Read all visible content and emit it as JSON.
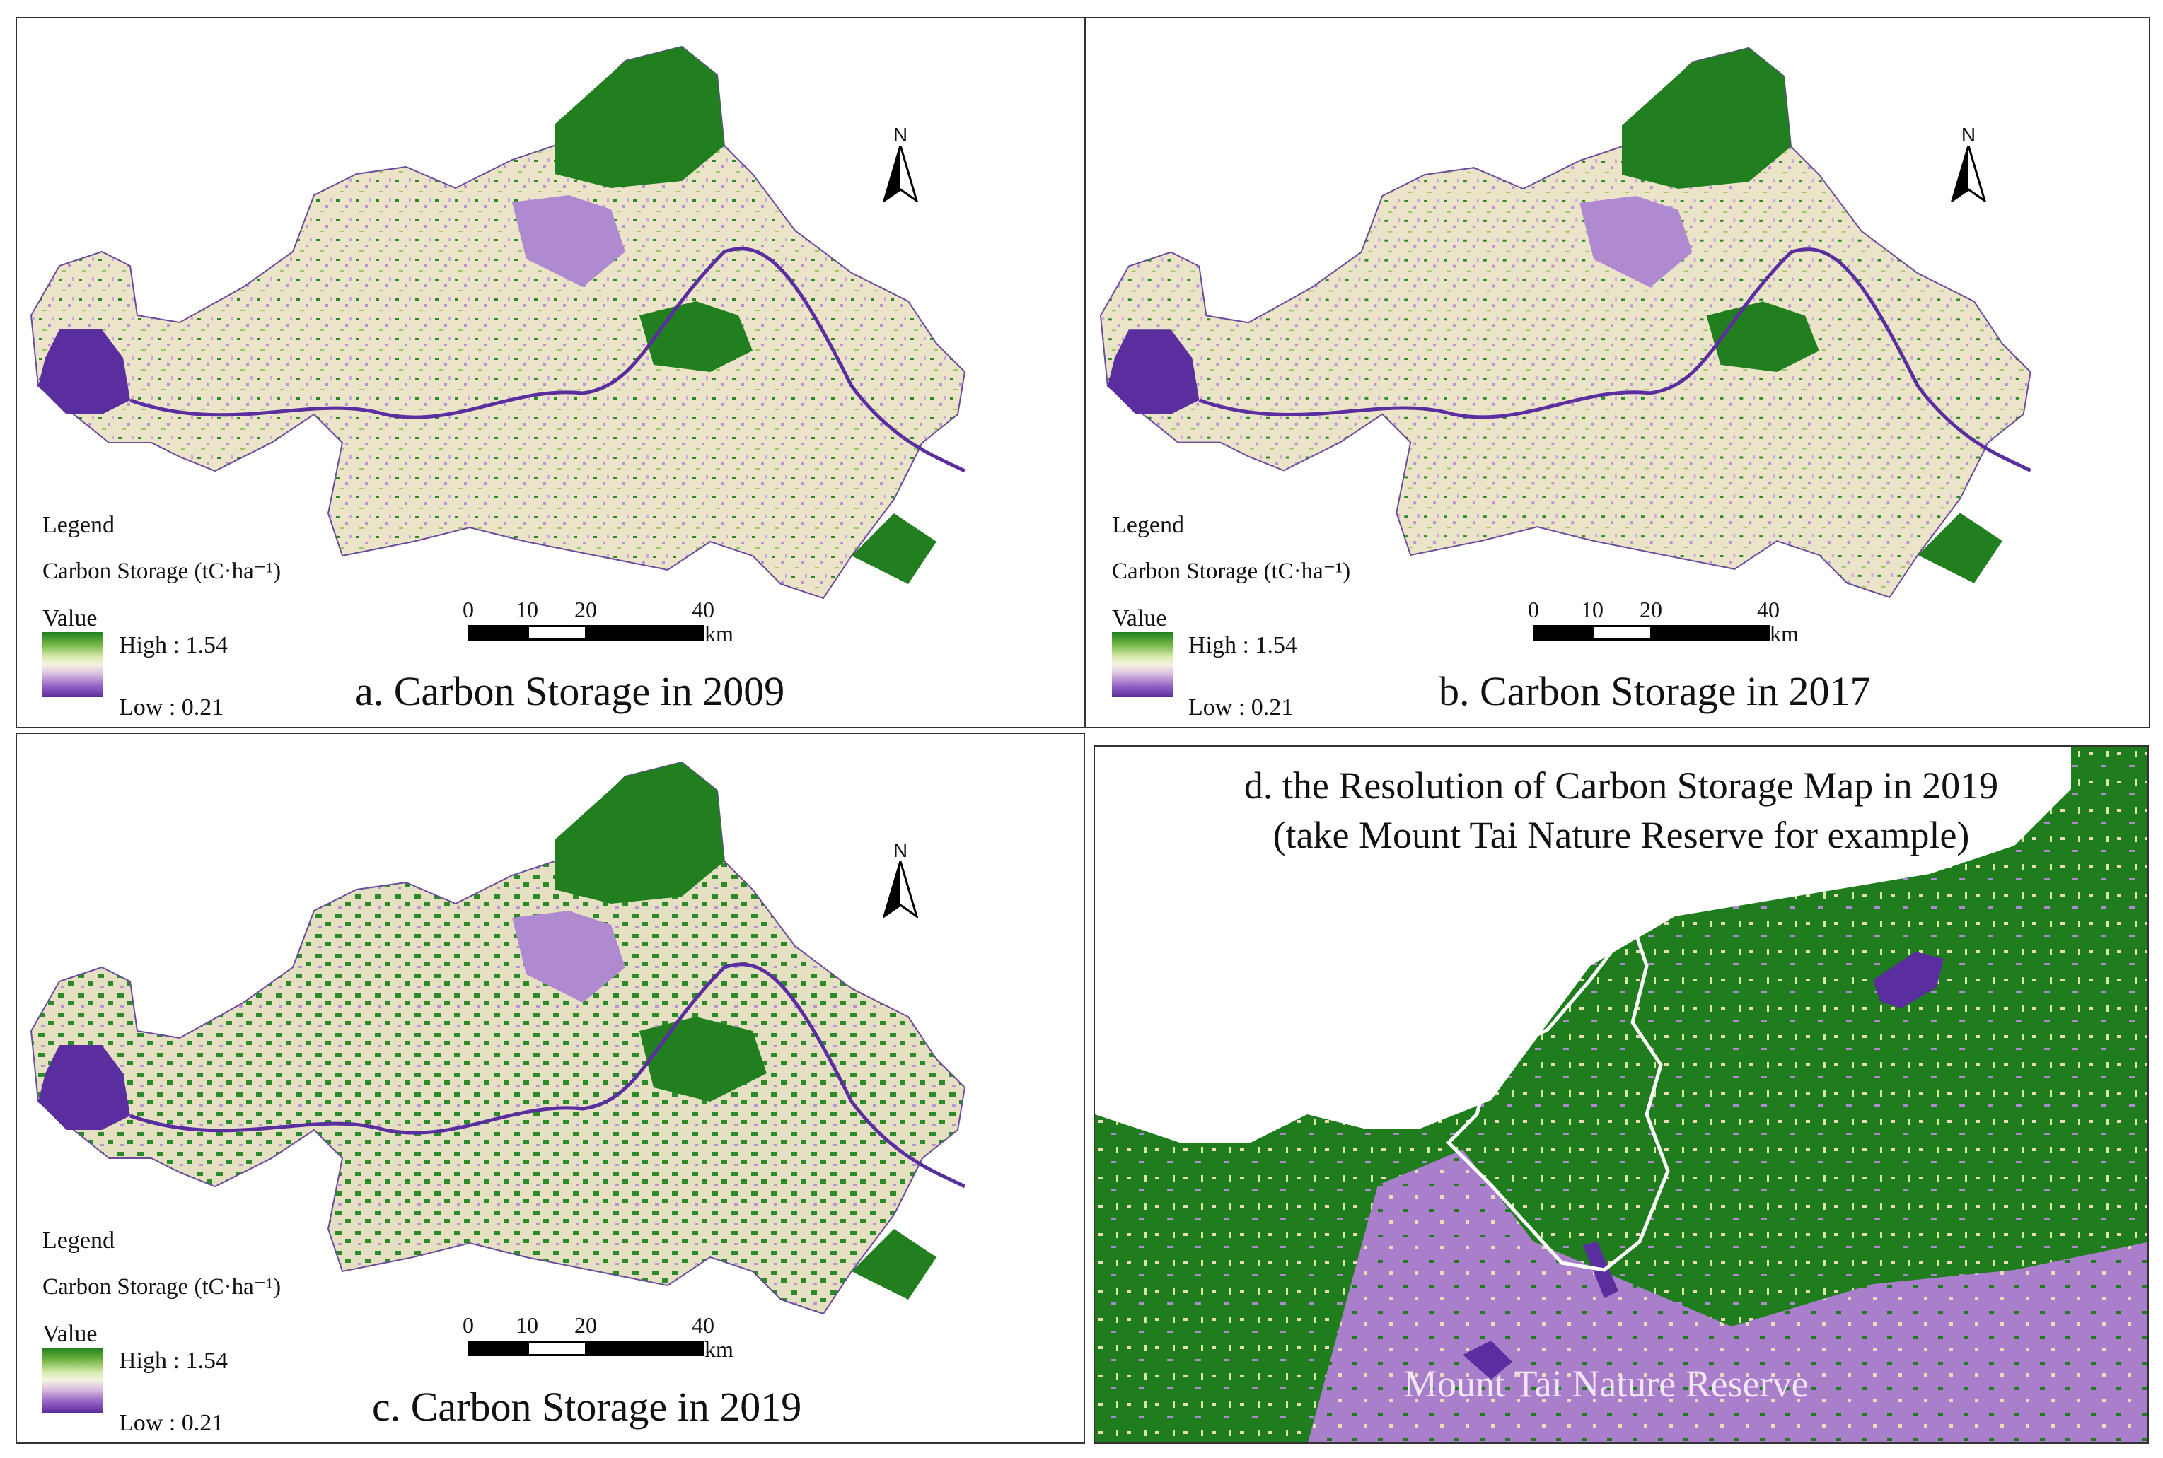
{
  "panels": [
    {
      "id": "a",
      "caption": "a. Carbon Storage in 2009",
      "north": "N",
      "legend": {
        "title": "Legend",
        "subtitle": "Carbon Storage (tC·ha⁻¹)",
        "value_label": "Value",
        "high": "High : 1.54",
        "low": "Low : 0.21"
      },
      "scale": {
        "ticks": [
          "0",
          "10",
          "20",
          "40"
        ],
        "unit": "km"
      }
    },
    {
      "id": "b",
      "caption": "b. Carbon Storage in 2017",
      "north": "N",
      "legend": {
        "title": "Legend",
        "subtitle": "Carbon Storage (tC·ha⁻¹)",
        "value_label": "Value",
        "high": "High : 1.54",
        "low": "Low : 0.21"
      },
      "scale": {
        "ticks": [
          "0",
          "10",
          "20",
          "40"
        ],
        "unit": "km"
      }
    },
    {
      "id": "c",
      "caption": "c. Carbon Storage in 2019",
      "north": "N",
      "legend": {
        "title": "Legend",
        "subtitle": "Carbon Storage (tC·ha⁻¹)",
        "value_label": "Value",
        "high": "High : 1.54",
        "low": "Low : 0.21"
      },
      "scale": {
        "ticks": [
          "0",
          "10",
          "20",
          "40"
        ],
        "unit": "km"
      }
    },
    {
      "id": "d",
      "title_line1": "d. the Resolution of Carbon Storage Map in 2019",
      "title_line2": "(take Mount Tai Nature Reserve for example)",
      "reserve_label": "Mount Tai Nature Reserve"
    }
  ],
  "colors": {
    "high": "#1f7f1f",
    "mid": "#ece4c8",
    "low": "#5a2d9c",
    "lavender": "#a67fc4"
  }
}
